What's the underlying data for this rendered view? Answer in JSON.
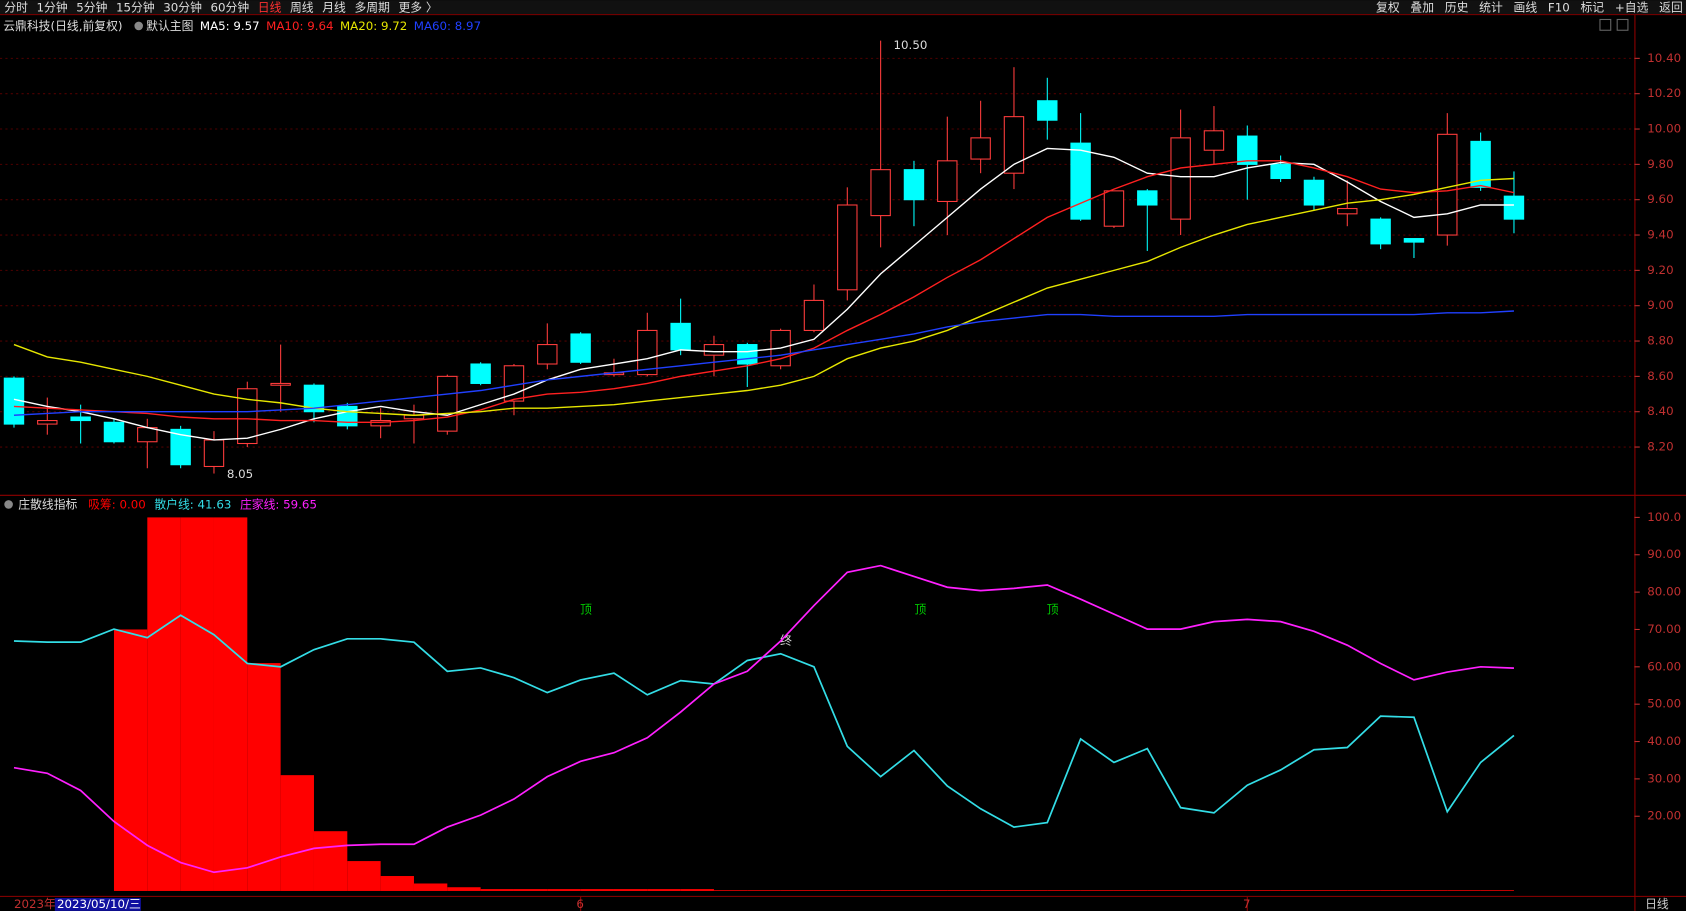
{
  "toolbar": {
    "left": [
      "分时",
      "1分钟",
      "5分钟",
      "15分钟",
      "30分钟",
      "60分钟",
      "日线",
      "周线",
      "月线",
      "多周期",
      "更多 〉"
    ],
    "active_index": 6,
    "right": [
      "复权",
      "叠加",
      "历史",
      "统计",
      "画线",
      "F10",
      "标记",
      "+自选",
      "返回"
    ]
  },
  "chart_data": [
    {
      "type": "candlestick",
      "title": "云鼎科技(日线,前复权)",
      "subtitle": "默认主图",
      "up_color": "#ff3c3c",
      "down_color": "#00ffff",
      "open": [
        8.59,
        8.33,
        8.37,
        8.34,
        8.23,
        8.3,
        8.09,
        8.22,
        8.55,
        8.55,
        8.43,
        8.32,
        8.36,
        8.29,
        8.67,
        8.46,
        8.67,
        8.84,
        8.61,
        8.61,
        8.9,
        8.72,
        8.78,
        8.66,
        8.86,
        9.09,
        9.51,
        9.77,
        9.59,
        9.83,
        9.75,
        10.16,
        9.92,
        9.45,
        9.65,
        9.49,
        9.88,
        9.96,
        9.8,
        9.71,
        9.52,
        9.49,
        9.38,
        9.4,
        9.93,
        9.62
      ],
      "high": [
        8.6,
        8.48,
        8.44,
        8.36,
        8.36,
        8.32,
        8.29,
        8.57,
        8.78,
        8.56,
        8.45,
        8.42,
        8.44,
        8.61,
        8.68,
        8.67,
        8.9,
        8.85,
        8.7,
        8.96,
        9.04,
        8.83,
        8.79,
        8.87,
        9.12,
        9.67,
        10.5,
        9.82,
        10.07,
        10.16,
        10.35,
        10.29,
        10.09,
        9.65,
        9.66,
        10.11,
        10.13,
        10.02,
        9.85,
        9.73,
        9.71,
        9.5,
        9.38,
        10.09,
        9.98,
        9.76
      ],
      "low": [
        8.31,
        8.27,
        8.22,
        8.22,
        8.08,
        8.08,
        8.05,
        8.2,
        8.4,
        8.34,
        8.3,
        8.25,
        8.22,
        8.27,
        8.55,
        8.38,
        8.64,
        8.67,
        8.6,
        8.6,
        8.72,
        8.6,
        8.54,
        8.64,
        8.85,
        9.03,
        9.33,
        9.45,
        9.4,
        9.75,
        9.66,
        9.94,
        9.48,
        9.44,
        9.31,
        9.4,
        9.8,
        9.6,
        9.7,
        9.54,
        9.45,
        9.32,
        9.27,
        9.34,
        9.65,
        9.41
      ],
      "close": [
        8.33,
        8.35,
        8.35,
        8.23,
        8.31,
        8.1,
        8.24,
        8.53,
        8.56,
        8.4,
        8.32,
        8.35,
        8.38,
        8.6,
        8.56,
        8.66,
        8.78,
        8.68,
        8.62,
        8.86,
        8.75,
        8.78,
        8.67,
        8.86,
        9.03,
        9.57,
        9.77,
        9.6,
        9.82,
        9.95,
        10.07,
        10.05,
        9.49,
        9.65,
        9.57,
        9.95,
        9.99,
        9.8,
        9.72,
        9.57,
        9.55,
        9.35,
        9.36,
        9.97,
        9.67,
        9.49
      ],
      "series": [
        {
          "name": "MA5",
          "legend": "MA5: 9.57",
          "color": "#ffffff",
          "values": [
            8.47,
            8.43,
            8.4,
            8.36,
            8.31,
            8.27,
            8.24,
            8.25,
            8.3,
            8.36,
            8.4,
            8.43,
            8.4,
            8.38,
            8.44,
            8.5,
            8.58,
            8.64,
            8.67,
            8.7,
            8.75,
            8.74,
            8.74,
            8.76,
            8.81,
            8.98,
            9.18,
            9.34,
            9.5,
            9.66,
            9.8,
            9.89,
            9.88,
            9.84,
            9.75,
            9.73,
            9.73,
            9.78,
            9.81,
            9.8,
            9.7,
            9.59,
            9.5,
            9.52,
            9.57,
            9.57
          ]
        },
        {
          "name": "MA10",
          "legend": "MA10: 9.64",
          "color": "#ff2020",
          "values": [
            8.43,
            8.42,
            8.41,
            8.4,
            8.39,
            8.37,
            8.36,
            8.36,
            8.35,
            8.35,
            8.34,
            8.34,
            8.35,
            8.37,
            8.41,
            8.47,
            8.5,
            8.51,
            8.53,
            8.56,
            8.6,
            8.63,
            8.66,
            8.7,
            8.76,
            8.86,
            8.95,
            9.05,
            9.16,
            9.26,
            9.38,
            9.5,
            9.58,
            9.66,
            9.73,
            9.78,
            9.8,
            9.82,
            9.82,
            9.78,
            9.73,
            9.66,
            9.64,
            9.65,
            9.68,
            9.64
          ]
        },
        {
          "name": "MA20",
          "legend": "MA20: 9.72",
          "color": "#e6e600",
          "values": [
            8.78,
            8.71,
            8.68,
            8.64,
            8.6,
            8.55,
            8.5,
            8.47,
            8.45,
            8.42,
            8.4,
            8.39,
            8.38,
            8.39,
            8.4,
            8.42,
            8.42,
            8.43,
            8.44,
            8.46,
            8.48,
            8.5,
            8.52,
            8.55,
            8.6,
            8.7,
            8.76,
            8.8,
            8.86,
            8.94,
            9.02,
            9.1,
            9.15,
            9.2,
            9.25,
            9.33,
            9.4,
            9.46,
            9.5,
            9.54,
            9.58,
            9.6,
            9.63,
            9.67,
            9.71,
            9.72
          ]
        },
        {
          "name": "MA60",
          "legend": "MA60: 8.97",
          "color": "#2040ff",
          "values": [
            8.38,
            8.39,
            8.4,
            8.4,
            8.4,
            8.4,
            8.4,
            8.4,
            8.41,
            8.42,
            8.44,
            8.46,
            8.48,
            8.5,
            8.52,
            8.55,
            8.58,
            8.6,
            8.62,
            8.64,
            8.66,
            8.68,
            8.7,
            8.72,
            8.75,
            8.78,
            8.81,
            8.84,
            8.88,
            8.91,
            8.93,
            8.95,
            8.95,
            8.94,
            8.94,
            8.94,
            8.94,
            8.95,
            8.95,
            8.95,
            8.95,
            8.95,
            8.95,
            8.96,
            8.96,
            8.97
          ]
        }
      ],
      "annotations": [
        "10.50",
        "8.05"
      ],
      "ylim": [
        7.93,
        10.62
      ],
      "yticks": [
        {
          "value": 8.2,
          "label": "8.20"
        },
        {
          "value": 8.4,
          "label": "8.40"
        },
        {
          "value": 8.6,
          "label": "8.60"
        },
        {
          "value": 8.8,
          "label": "8.80"
        },
        {
          "value": 9.0,
          "label": "9.00"
        },
        {
          "value": 9.2,
          "label": "9.20"
        },
        {
          "value": 9.4,
          "label": "9.40"
        },
        {
          "value": 9.6,
          "label": "9.60"
        },
        {
          "value": 9.8,
          "label": "9.80"
        },
        {
          "value": 10.0,
          "label": "10.00"
        },
        {
          "value": 10.2,
          "label": "10.20"
        },
        {
          "value": 10.4,
          "label": "10.40"
        }
      ],
      "grid": true
    },
    {
      "type": "indicator",
      "title": "庄散线指标",
      "categories": [
        null,
        null,
        null,
        null,
        null,
        null,
        null,
        null,
        null,
        null,
        null,
        null,
        null,
        null,
        null,
        null,
        null,
        "6",
        null,
        null,
        null,
        null,
        null,
        null,
        null,
        null,
        null,
        null,
        null,
        null,
        null,
        null,
        null,
        null,
        null,
        null,
        null,
        "7",
        null,
        null,
        null,
        null,
        null,
        null,
        null,
        null
      ],
      "bars": {
        "name": "吸筹",
        "legend": "吸筹: 0.00",
        "color": "#ff0000",
        "values": [
          0,
          0,
          0,
          70,
          100,
          100,
          100,
          61,
          31,
          16,
          8,
          4,
          2,
          1,
          0.5,
          0.5,
          0.5,
          0.5,
          0.5,
          0.5,
          0.5,
          0.2,
          0.2,
          0.2,
          0.2,
          0.2,
          0.2,
          0.2,
          0.2,
          0.2,
          0.2,
          0.2,
          0.2,
          0.2,
          0.2,
          0.2,
          0.2,
          0.2,
          0.2,
          0.2,
          0.2,
          0.2,
          0.2,
          0.2,
          0.2,
          0
        ]
      },
      "series": [
        {
          "name": "散户线",
          "legend": "散户线: 41.63",
          "color": "#33dde6",
          "values": [
            66.9,
            66.6,
            66.6,
            70.1,
            67.8,
            73.8,
            68.6,
            60.9,
            60.0,
            64.6,
            67.5,
            67.5,
            66.6,
            58.8,
            59.7,
            57.1,
            53.1,
            56.5,
            58.3,
            52.5,
            56.3,
            55.4,
            61.7,
            63.5,
            60.0,
            38.7,
            30.6,
            37.6,
            28.1,
            22.0,
            17.1,
            18.3,
            40.7,
            34.4,
            38.1,
            22.3,
            20.9,
            28.3,
            32.4,
            37.8,
            38.4,
            46.8,
            46.5,
            21.2,
            34.4,
            41.63
          ]
        },
        {
          "name": "庄家线",
          "legend": "庄家线: 59.65",
          "color": "#ff20ff",
          "values": [
            33.0,
            31.5,
            26.9,
            18.6,
            12.2,
            7.6,
            5.0,
            6.2,
            9.1,
            11.4,
            12.2,
            12.5,
            12.5,
            17.1,
            20.3,
            24.6,
            30.6,
            34.7,
            37.0,
            41.0,
            47.9,
            55.4,
            58.8,
            66.9,
            76.4,
            85.3,
            87.1,
            84.2,
            81.3,
            80.4,
            81.0,
            81.9,
            78.1,
            74.1,
            70.1,
            70.1,
            72.1,
            72.7,
            72.1,
            69.5,
            65.8,
            60.9,
            56.5,
            58.6,
            60.0,
            59.65
          ]
        }
      ],
      "annotations": [
        "顶",
        "顶",
        "顶",
        "终"
      ],
      "ylim": [
        -1.3,
        105.2
      ],
      "yticks": [
        {
          "value": 20,
          "label": "20.00"
        },
        {
          "value": 30,
          "label": "30.00"
        },
        {
          "value": 40,
          "label": "40.00"
        },
        {
          "value": 50,
          "label": "50.00"
        },
        {
          "value": 60,
          "label": "60.00"
        },
        {
          "value": 70,
          "label": "70.00"
        },
        {
          "value": 80,
          "label": "80.00"
        },
        {
          "value": 90,
          "label": "90.00"
        },
        {
          "value": 100,
          "label": "100.0"
        }
      ],
      "grid": false
    }
  ],
  "footer": {
    "start": "2023年",
    "cursor": "2023/05/10/三",
    "period": "日线"
  }
}
